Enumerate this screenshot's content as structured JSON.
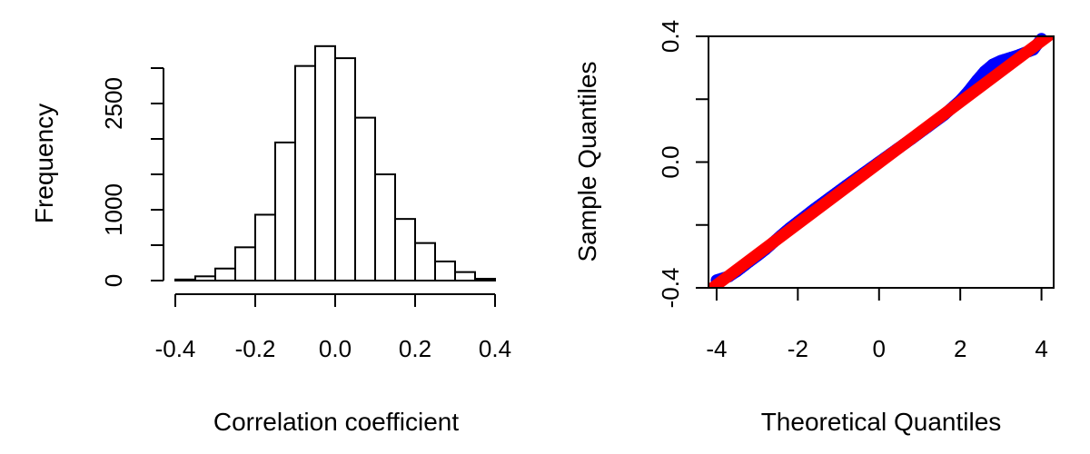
{
  "chart_data": [
    {
      "type": "bar",
      "subtype": "histogram",
      "title": "",
      "xlabel": "Correlation coefficient",
      "ylabel": "Frequency",
      "bin_edges": [
        -0.4,
        -0.35,
        -0.3,
        -0.25,
        -0.2,
        -0.15,
        -0.1,
        -0.05,
        0.0,
        0.05,
        0.1,
        0.15,
        0.2,
        0.25,
        0.3,
        0.35,
        0.4
      ],
      "values": [
        15,
        60,
        170,
        470,
        930,
        1950,
        3030,
        3310,
        3140,
        2300,
        1500,
        870,
        530,
        270,
        120,
        25
      ],
      "xlim": [
        -0.4,
        0.4
      ],
      "ylim": [
        0,
        3100
      ],
      "xticks": [
        -0.4,
        -0.2,
        0.0,
        0.2,
        0.4
      ],
      "xtick_labels": [
        "-0.4",
        "-0.2",
        "0.0",
        "0.2",
        "0.4"
      ],
      "yticks": [
        0,
        500,
        1000,
        1500,
        2000,
        2500,
        3000
      ],
      "ytick_labels": [
        "0",
        "",
        "1000",
        "",
        "",
        "2500",
        ""
      ],
      "bar_fill": "#ffffff",
      "bar_stroke": "#000000"
    },
    {
      "type": "scatter",
      "subtype": "qqplot",
      "title": "",
      "xlabel": "Theoretical Quantiles",
      "ylabel": "Sample Quantiles",
      "xlim": [
        -4.2,
        4.3
      ],
      "ylim": [
        -0.4,
        0.4
      ],
      "xticks": [
        -4,
        -2,
        0,
        2,
        4
      ],
      "xtick_labels": [
        "-4",
        "-2",
        "0",
        "2",
        "4"
      ],
      "yticks": [
        -0.4,
        -0.2,
        0.0,
        0.2,
        0.4
      ],
      "ytick_labels": [
        "-0.4",
        "",
        "0.0",
        "",
        "0.4"
      ],
      "series": [
        {
          "name": "sample quantiles",
          "color": "#0000ff",
          "marker": "open-circle",
          "x": [
            -4.0,
            -3.8,
            -3.7,
            -3.6,
            -3.5,
            -3.4,
            -3.3,
            -3.2,
            -3.0,
            -2.8,
            -2.6,
            -2.4,
            -2.2,
            -2.0,
            -1.6,
            -1.2,
            -0.8,
            -0.4,
            0.0,
            0.4,
            0.8,
            1.2,
            1.6,
            2.0,
            2.2,
            2.4,
            2.6,
            2.8,
            3.0,
            3.2,
            3.4,
            3.6,
            3.8,
            4.0
          ],
          "y": [
            -0.376,
            -0.368,
            -0.364,
            -0.355,
            -0.347,
            -0.337,
            -0.327,
            -0.317,
            -0.298,
            -0.278,
            -0.255,
            -0.232,
            -0.21,
            -0.19,
            -0.15,
            -0.112,
            -0.074,
            -0.037,
            0.0,
            0.037,
            0.074,
            0.112,
            0.15,
            0.196,
            0.225,
            0.258,
            0.288,
            0.31,
            0.322,
            0.33,
            0.338,
            0.348,
            0.358,
            0.392
          ]
        }
      ],
      "reference_line": {
        "name": "qqline",
        "color": "#ff0000",
        "x": [
          -4.2,
          4.3
        ],
        "y": [
          -0.41,
          0.414
        ]
      }
    }
  ]
}
